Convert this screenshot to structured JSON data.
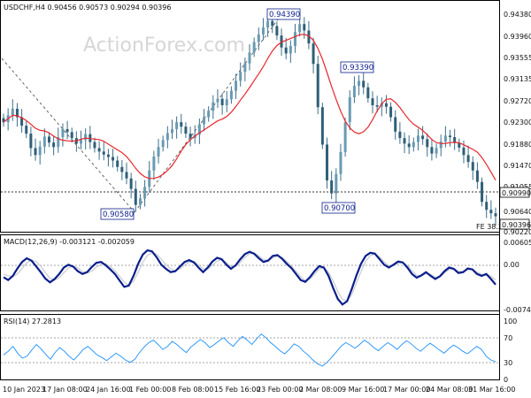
{
  "chart_data": [
    {
      "type": "candlestick",
      "header": "USDCHF,H4  0.90456 0.90573 0.90294 0.90396",
      "watermark": "ActionForex.com",
      "y_ticks": [
        "0.94380",
        "0.93960",
        "0.93555",
        "0.93135",
        "0.92720",
        "0.92300",
        "0.91880",
        "0.91470",
        "0.91055",
        "0.90640",
        "0.90220"
      ],
      "ylim": [
        0.9008,
        0.9452
      ],
      "price_tag": {
        "value": 0.90396,
        "label": "0.90396",
        "color": "#ffffff"
      },
      "level_tag": {
        "value": 0.9099,
        "label": "0.90990"
      },
      "fe_label": "FE 38.2",
      "annotations": [
        {
          "label": "0.94390",
          "x": "22 Feb 08:00",
          "value": 0.9439
        },
        {
          "label": "0.93390",
          "x": "13 Mar 08:00",
          "value": 0.9339
        },
        {
          "label": "0.90580",
          "x": "31 Jan 20:00",
          "value": 0.9058
        },
        {
          "label": "0.90700",
          "x": "9 Mar 08:00",
          "value": 0.907
        }
      ],
      "close_series": [
        0.9228,
        0.9242,
        0.9255,
        0.9238,
        0.9221,
        0.9205,
        0.9176,
        0.9162,
        0.9179,
        0.9199,
        0.9187,
        0.9178,
        0.9198,
        0.9214,
        0.9208,
        0.9196,
        0.9185,
        0.9192,
        0.9204,
        0.9188,
        0.9176,
        0.9169,
        0.9163,
        0.9158,
        0.9151,
        0.9138,
        0.9128,
        0.9115,
        0.9094,
        0.9062,
        0.9075,
        0.9098,
        0.9131,
        0.9159,
        0.9178,
        0.9192,
        0.9206,
        0.9214,
        0.9228,
        0.9219,
        0.9205,
        0.9196,
        0.9203,
        0.9224,
        0.9238,
        0.9251,
        0.9268,
        0.9275,
        0.9262,
        0.9274,
        0.9291,
        0.9311,
        0.9329,
        0.9346,
        0.9368,
        0.9389,
        0.9404,
        0.9418,
        0.9431,
        0.9421,
        0.9402,
        0.9378,
        0.9366,
        0.9381,
        0.9409,
        0.9425,
        0.9412,
        0.9386,
        0.9345,
        0.9258,
        0.9183,
        0.9111,
        0.9085,
        0.9124,
        0.9168,
        0.9228,
        0.9278,
        0.9301,
        0.9311,
        0.9298,
        0.9276,
        0.9262,
        0.9259,
        0.9266,
        0.9259,
        0.9238,
        0.9209,
        0.9196,
        0.9185,
        0.9178,
        0.9188,
        0.9201,
        0.9194,
        0.9178,
        0.9165,
        0.9176,
        0.9189,
        0.9201,
        0.9198,
        0.9186,
        0.9177,
        0.9162,
        0.9148,
        0.9131,
        0.9108,
        0.9068,
        0.9052,
        0.9045,
        0.9039
      ],
      "moving_average_color": "#e8262d",
      "x_ticks": [
        "10 Jan 2023",
        "17 Jan 08:00",
        "24 Jan 16:00",
        "1 Feb 00:00",
        "8 Feb 08:00",
        "15 Feb 16:00",
        "23 Feb 00:00",
        "2 Mar 08:00",
        "9 Mar 16:00",
        "17 Mar 00:00",
        "24 Mar 08:00",
        "31 Mar 16:00"
      ]
    },
    {
      "type": "line",
      "title": "MACD(12,26,9) -0.003121 -0.002059",
      "y_ticks": [
        "0.006052",
        "0.00",
        "-0.007417"
      ],
      "ylim": [
        -0.0085,
        0.0072
      ],
      "series": [
        {
          "name": "MACD",
          "color": "#0a1e8c",
          "values": [
            -0.0015,
            -0.0021,
            -0.0012,
            0.0004,
            0.0018,
            0.0026,
            0.0021,
            0.0009,
            -0.0004,
            -0.0018,
            -0.0026,
            -0.0019,
            -0.0008,
            0.0006,
            0.0012,
            0.0008,
            -0.0002,
            -0.0008,
            -0.0004,
            0.0007,
            0.0016,
            0.0018,
            0.0011,
            0.0002,
            -0.0008,
            -0.0022,
            -0.0036,
            -0.0033,
            -0.0012,
            0.0014,
            0.0034,
            0.0043,
            0.0041,
            0.0028,
            0.0012,
            0.0003,
            -0.0004,
            -0.0002,
            0.0008,
            0.0018,
            0.0022,
            0.0017,
            0.0006,
            -0.0004,
            0.0006,
            0.0019,
            0.0027,
            0.0024,
            0.0012,
            0.0003,
            0.0011,
            0.0024,
            0.0035,
            0.004,
            0.0036,
            0.0026,
            0.0018,
            0.0021,
            0.0031,
            0.0033,
            0.0025,
            0.0014,
            0.0005,
            -0.0008,
            -0.0021,
            -0.0025,
            -0.0015,
            -0.0002,
            0.0009,
            0.0006,
            -0.0012,
            -0.0038,
            -0.0062,
            -0.0074,
            -0.0067,
            -0.0041,
            -0.0012,
            0.0014,
            0.0031,
            0.0038,
            0.0036,
            0.0024,
            0.0012,
            0.0006,
            0.0012,
            0.0019,
            0.0017,
            0.0006,
            -0.0008,
            -0.0016,
            -0.0011,
            -0.0004,
            -0.0012,
            -0.0019,
            -0.0013,
            -0.0002,
            0.0006,
            0.0003,
            -0.0006,
            -0.0004,
            0.0004,
            0.0002,
            -0.0008,
            -0.0012,
            -0.0008,
            -0.0019,
            -0.0031
          ]
        },
        {
          "name": "Signal",
          "color": "#c9cbcf",
          "values": [
            -0.0008,
            -0.0012,
            -0.0014,
            -0.0008,
            0.0004,
            0.0016,
            0.0022,
            0.0019,
            0.0009,
            -0.0005,
            -0.0017,
            -0.0021,
            -0.0016,
            -0.0005,
            0.0005,
            0.0009,
            0.0005,
            -0.0003,
            -0.0006,
            -0.0002,
            0.0007,
            0.0013,
            0.0014,
            0.0008,
            -0.0001,
            -0.0013,
            -0.0026,
            -0.0032,
            -0.0024,
            -0.0004,
            0.0017,
            0.0032,
            0.0038,
            0.0035,
            0.0024,
            0.0012,
            0.0003,
            -0.0001,
            0.0003,
            0.0011,
            0.0018,
            0.0019,
            0.0012,
            0.0003,
            0.0003,
            0.0011,
            0.002,
            0.0023,
            0.0017,
            0.0008,
            0.0008,
            0.0017,
            0.0028,
            0.0036,
            0.0037,
            0.0031,
            0.0023,
            0.0021,
            0.0026,
            0.0031,
            0.0028,
            0.0019,
            0.0009,
            -0.0002,
            -0.0014,
            -0.0022,
            -0.0019,
            -0.0009,
            0.0003,
            0.0006,
            -0.0004,
            -0.0023,
            -0.0046,
            -0.0063,
            -0.0066,
            -0.0053,
            -0.0028,
            -0.0003,
            0.0019,
            0.0032,
            0.0035,
            0.0029,
            0.0018,
            0.001,
            0.001,
            0.0015,
            0.0017,
            0.0011,
            -0.0001,
            -0.0011,
            -0.0012,
            -0.0007,
            -0.0009,
            -0.0015,
            -0.0014,
            -0.0006,
            0.0002,
            0.0003,
            -0.0002,
            -0.0003,
            0.0001,
            0.0002,
            -0.0004,
            -0.0009,
            -0.0008,
            -0.0013,
            -0.0021
          ]
        }
      ]
    },
    {
      "type": "line",
      "title": "RSI(14) 27.2813",
      "y_ticks": [
        "100",
        "70",
        "30",
        "0"
      ],
      "ylim": [
        0,
        100
      ],
      "levels": [
        70,
        30
      ],
      "series": [
        {
          "name": "RSI",
          "color": "#1e90ff",
          "values": [
            38,
            44,
            52,
            41,
            33,
            36,
            46,
            55,
            48,
            39,
            31,
            42,
            50,
            44,
            36,
            30,
            38,
            47,
            52,
            45,
            38,
            34,
            29,
            35,
            41,
            36,
            30,
            26,
            31,
            42,
            51,
            58,
            62,
            55,
            47,
            52,
            60,
            55,
            48,
            42,
            51,
            57,
            63,
            58,
            50,
            55,
            61,
            66,
            58,
            52,
            61,
            68,
            62,
            55,
            64,
            72,
            66,
            58,
            52,
            45,
            40,
            47,
            56,
            52,
            44,
            38,
            30,
            24,
            20,
            26,
            34,
            43,
            52,
            58,
            54,
            49,
            55,
            62,
            57,
            50,
            45,
            52,
            58,
            53,
            47,
            55,
            61,
            56,
            49,
            44,
            51,
            57,
            52,
            46,
            41,
            48,
            54,
            50,
            44,
            40,
            46,
            52,
            47,
            36,
            30,
            27
          ]
        }
      ]
    }
  ]
}
